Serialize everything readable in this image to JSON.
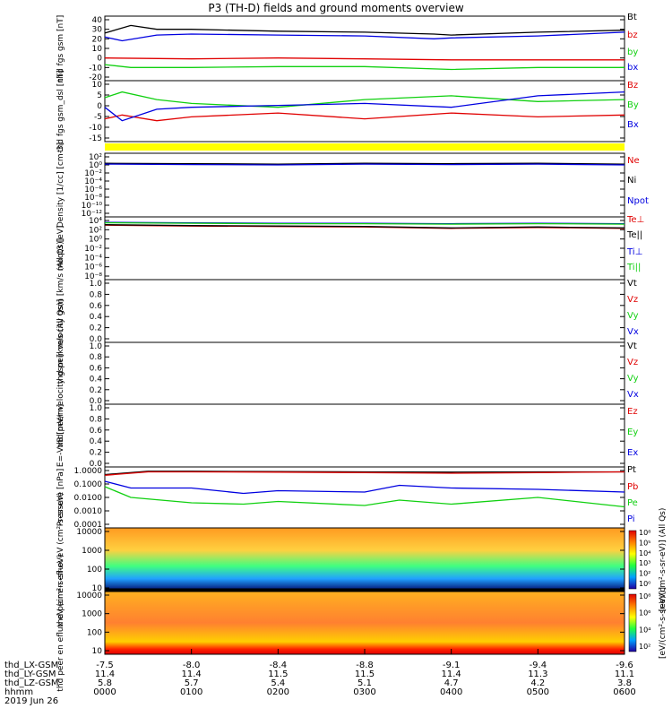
{
  "title": "P3 (TH-D) fields and ground moments overview",
  "footer_labels": [
    "thd_LX-GSM",
    "thd_LY-GSM",
    "thd_LZ-GSM",
    "hhmm",
    "2019 Jun 26"
  ],
  "time_axis": {
    "lx": [
      "-7.5",
      "-8.0",
      "-8.4",
      "-8.8",
      "-9.1",
      "-9.4",
      "-9.6"
    ],
    "ly": [
      "11.4",
      "11.4",
      "11.5",
      "11.5",
      "11.4",
      "11.3",
      "11.1"
    ],
    "lz": [
      "5.8",
      "5.7",
      "5.4",
      "5.1",
      "4.7",
      "4.2",
      "3.8"
    ],
    "hhmm": [
      "0000",
      "0100",
      "0200",
      "0300",
      "0400",
      "0500",
      "0600"
    ]
  },
  "colors": {
    "black": "#000000",
    "red": "#e00000",
    "green": "#10d010",
    "blue": "#0000e0",
    "yellow": "#ffff00"
  },
  "chart_data": [
    {
      "type": "line",
      "ylabel": "thd fgs gsm [nT]",
      "yticks": [
        "40",
        "30",
        "20",
        "10",
        "0",
        "-10",
        "-20"
      ],
      "ylim": [
        -20,
        40
      ],
      "series": [
        {
          "name": "Bt",
          "color": "#000000",
          "x": [
            0,
            0.3,
            0.6,
            1,
            2,
            3,
            3.8,
            4,
            5,
            6
          ],
          "values": [
            26,
            34,
            30,
            30,
            28,
            27,
            25,
            24,
            27,
            29
          ]
        },
        {
          "name": "bz",
          "color": "#e00000",
          "x": [
            0,
            1,
            2,
            3,
            4,
            5,
            6
          ],
          "values": [
            0,
            -1,
            0,
            -1,
            -2,
            -2,
            -2
          ]
        },
        {
          "name": "by",
          "color": "#10d010",
          "x": [
            0,
            0.3,
            1,
            2,
            3,
            4,
            5,
            6
          ],
          "values": [
            -7,
            -10,
            -10,
            -9,
            -9,
            -12,
            -10,
            -10
          ]
        },
        {
          "name": "bx",
          "color": "#0000e0",
          "x": [
            0,
            0.2,
            0.6,
            1,
            2,
            3,
            3.8,
            4,
            5,
            6
          ],
          "values": [
            22,
            18,
            24,
            25,
            24,
            23,
            20,
            21,
            23,
            27
          ]
        }
      ]
    },
    {
      "type": "line",
      "ylabel": "thd fgs gsm_dsl [nT]",
      "yticks": [
        "10",
        "5",
        "0",
        "-5",
        "-10",
        "-15"
      ],
      "ylim": [
        -18,
        10
      ],
      "series": [
        {
          "name": "Bz",
          "color": "#e00000",
          "x": [
            0,
            0.2,
            0.6,
            1,
            2,
            3,
            4,
            5,
            6
          ],
          "values": [
            -8,
            -6,
            -9,
            -7,
            -5,
            -8,
            -5,
            -7,
            -6
          ]
        },
        {
          "name": "By",
          "color": "#10d010",
          "x": [
            0,
            0.2,
            0.6,
            1,
            2,
            3,
            4,
            5,
            6
          ],
          "values": [
            3,
            6,
            2,
            0,
            -2,
            2,
            4,
            1,
            2
          ]
        },
        {
          "name": "Bx",
          "color": "#0000e0",
          "x": [
            0,
            0.2,
            0.6,
            1,
            2,
            3,
            4,
            5,
            6
          ],
          "values": [
            -2,
            -9,
            -3,
            -2,
            -1,
            0,
            -2,
            4,
            6
          ]
        }
      ]
    },
    {
      "type": "line",
      "ylabel": "Density [1/cc] [cm-3]",
      "yticks": [
        "10²",
        "10⁰",
        "10⁻²",
        "10⁻⁴",
        "10⁻⁶",
        "10⁻⁸",
        "10⁻¹⁰",
        "10⁻¹²"
      ],
      "ylim": [
        -12,
        2
      ],
      "scale": "log",
      "series": [
        {
          "name": "Ne",
          "color": "#e00000",
          "x": [
            0,
            1,
            2,
            3,
            4,
            5,
            6
          ],
          "values": [
            0.3,
            0.2,
            0.1,
            0.3,
            0.2,
            0.3,
            0.1
          ]
        },
        {
          "name": "Ni",
          "color": "#000000",
          "x": [
            0,
            1,
            2,
            3,
            4,
            5,
            6
          ],
          "values": [
            0.4,
            0.3,
            0.2,
            0.4,
            0.3,
            0.4,
            0.2
          ]
        },
        {
          "name": "Npot",
          "color": "#0000e0",
          "x": [
            0,
            1,
            2,
            3,
            4,
            5,
            6
          ],
          "values": [
            0.2,
            0.1,
            0.0,
            0.2,
            0.1,
            0.2,
            0.0
          ]
        }
      ]
    },
    {
      "type": "line",
      "ylabel": "moqt3 [eV]",
      "yticks": [
        "10⁴",
        "10²",
        "10⁰",
        "10⁻²",
        "10⁻⁴",
        "10⁻⁶",
        "10⁻⁸"
      ],
      "ylim": [
        -8,
        4
      ],
      "scale": "log",
      "series": [
        {
          "name": "Te⊥",
          "color": "#e00000",
          "x": [
            0,
            1,
            2,
            3,
            4,
            5,
            6
          ],
          "values": [
            3.0,
            2.8,
            2.7,
            2.6,
            2.3,
            2.5,
            2.3
          ]
        },
        {
          "name": "Te||",
          "color": "#000000",
          "x": [
            0,
            1,
            2,
            3,
            4,
            5,
            6
          ],
          "values": [
            3.1,
            2.9,
            2.8,
            2.7,
            2.4,
            2.6,
            2.4
          ]
        },
        {
          "name": "Ti⊥",
          "color": "#0000e0",
          "x": [
            0,
            1,
            2,
            3,
            4,
            5,
            6
          ],
          "values": [
            3.6,
            3.5,
            3.4,
            3.4,
            3.3,
            3.4,
            3.3
          ]
        },
        {
          "name": "Ti||",
          "color": "#10d010",
          "x": [
            0,
            1,
            2,
            3,
            4,
            5,
            6
          ],
          "values": [
            3.5,
            3.4,
            3.3,
            3.3,
            3.2,
            3.3,
            3.2
          ]
        }
      ]
    },
    {
      "type": "line",
      "ylabel": "thd peir velocity gsm [km/s (All Qs)]",
      "yticks": [
        "1.0",
        "0.8",
        "0.6",
        "0.4",
        "0.2",
        "0.0"
      ],
      "ylim": [
        0,
        1
      ],
      "legend_only": [
        "Vt",
        "Vz",
        "Vy",
        "Vx"
      ],
      "series": []
    },
    {
      "type": "line",
      "ylabel": "thd peer velocity gsm [km/s (All Qs)]",
      "yticks": [
        "1.0",
        "0.8",
        "0.6",
        "0.4",
        "0.2",
        "0.0"
      ],
      "ylim": [
        0,
        1
      ],
      "legend_only": [
        "Vt",
        "Vz",
        "Vy",
        "Vx"
      ],
      "series": []
    },
    {
      "type": "line",
      "ylabel": "E=-VxB [mV/m]",
      "yticks": [
        "1.0",
        "0.8",
        "0.6",
        "0.4",
        "0.2",
        "0.0"
      ],
      "ylim": [
        0,
        1
      ],
      "legend_only": [
        "Ez",
        "Ey",
        "Ex"
      ],
      "series": []
    },
    {
      "type": "line",
      "ylabel": "Pressure [nPa]",
      "yticks": [
        "1.0000",
        "0.1000",
        "0.0100",
        "0.0010",
        "0.0001"
      ],
      "ylim": [
        -4,
        0
      ],
      "scale": "log",
      "series": [
        {
          "name": "Pt",
          "color": "#000000",
          "x": [
            0,
            0.5,
            1,
            2,
            3,
            4,
            5,
            6
          ],
          "values": [
            -0.3,
            -0.05,
            -0.05,
            -0.08,
            -0.1,
            -0.12,
            -0.1,
            -0.1
          ]
        },
        {
          "name": "Pb",
          "color": "#e00000",
          "x": [
            0,
            0.5,
            1,
            2,
            3,
            4,
            5,
            6
          ],
          "values": [
            -0.35,
            -0.1,
            -0.1,
            -0.12,
            -0.15,
            -0.2,
            -0.15,
            -0.1
          ]
        },
        {
          "name": "Pe",
          "color": "#10d010",
          "x": [
            0,
            0.3,
            1,
            1.6,
            2,
            3,
            3.4,
            4,
            5,
            6
          ],
          "values": [
            -1.2,
            -2.0,
            -2.4,
            -2.5,
            -2.3,
            -2.6,
            -2.2,
            -2.5,
            -2.0,
            -2.7
          ]
        },
        {
          "name": "Pi",
          "color": "#0000e0",
          "x": [
            0,
            0.3,
            1,
            1.6,
            2,
            3,
            3.4,
            4,
            5,
            6
          ],
          "values": [
            -0.8,
            -1.3,
            -1.3,
            -1.7,
            -1.5,
            -1.6,
            -1.1,
            -1.3,
            -1.4,
            -1.6
          ]
        }
      ]
    },
    {
      "type": "heatmap",
      "ylabel": "thd peir en eflux eV (cm²-s-sr-eV)",
      "yticks": [
        "10000",
        "1000",
        "100",
        "10"
      ],
      "colorbar_label": "[eV/(cm²-s-sr-eV)] (All Qs)",
      "colorbar_ticks": [
        "10⁸",
        "10⁵",
        "10⁴",
        "10³",
        "10²",
        "10⁰"
      ]
    },
    {
      "type": "heatmap",
      "ylabel": "thd peer en eflux eV (cm²-s-sr-eV)",
      "yticks": [
        "10000",
        "1000",
        "100",
        "10"
      ],
      "colorbar_label": "[eV/(cm²-s-sr-eV)]",
      "colorbar_ticks": [
        "10⁸",
        "10⁶",
        "10⁴",
        "10²"
      ]
    }
  ]
}
